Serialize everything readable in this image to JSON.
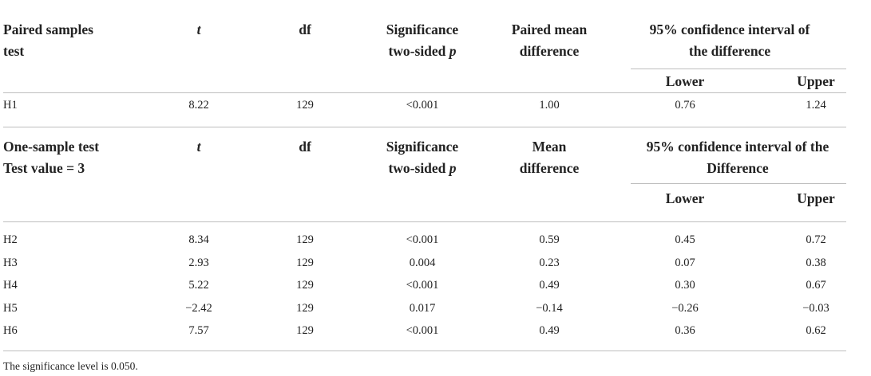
{
  "section1": {
    "title_line1": "Paired samples",
    "title_line2": "test",
    "col_t": "t",
    "col_df": "df",
    "col_sig_line1": "Significance",
    "col_sig_line2": "two-sided",
    "col_sig_p": "p",
    "col_mean_line1": "Paired mean",
    "col_mean_line2": "difference",
    "col_ci_line1": "95% confidence interval of",
    "col_ci_line2": "the difference",
    "col_lower": "Lower",
    "col_upper": "Upper",
    "rows": [
      {
        "label": "H1",
        "t": "8.22",
        "df": "129",
        "p": "<0.001",
        "mean": "1.00",
        "lower": "0.76",
        "upper": "1.24"
      }
    ]
  },
  "section2": {
    "title_line1": "One-sample test",
    "title_line2": "Test value = 3",
    "col_t": "t",
    "col_df": "df",
    "col_sig_line1": "Significance",
    "col_sig_line2": "two-sided",
    "col_sig_p": "p",
    "col_mean_line1": "Mean",
    "col_mean_line2": "difference",
    "col_ci_line1": "95% confidence interval of the",
    "col_ci_line2": "Difference",
    "col_lower": "Lower",
    "col_upper": "Upper",
    "rows": [
      {
        "label": "H2",
        "t": "8.34",
        "df": "129",
        "p": "<0.001",
        "mean": "0.59",
        "lower": "0.45",
        "upper": "0.72"
      },
      {
        "label": "H3",
        "t": "2.93",
        "df": "129",
        "p": "0.004",
        "mean": "0.23",
        "lower": "0.07",
        "upper": "0.38"
      },
      {
        "label": "H4",
        "t": "5.22",
        "df": "129",
        "p": "<0.001",
        "mean": "0.49",
        "lower": "0.30",
        "upper": "0.67"
      },
      {
        "label": "H5",
        "t": "−2.42",
        "df": "129",
        "p": "0.017",
        "mean": "−0.14",
        "lower": "−0.26",
        "upper": "−0.03"
      },
      {
        "label": "H6",
        "t": "7.57",
        "df": "129",
        "p": "<0.001",
        "mean": "0.49",
        "lower": "0.36",
        "upper": "0.62"
      }
    ]
  },
  "footnote": "The significance level is 0.050."
}
